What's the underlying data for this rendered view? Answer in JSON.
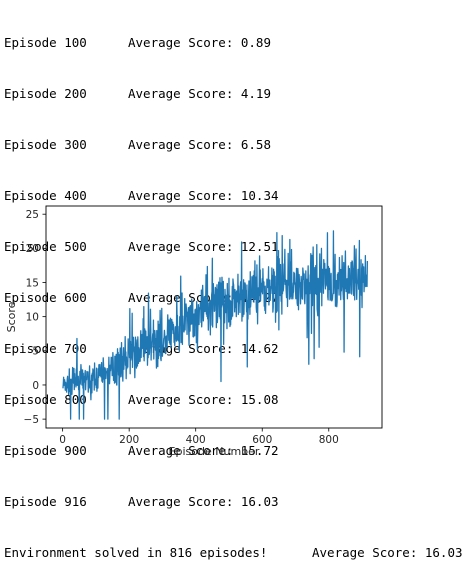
{
  "log": {
    "episodes": [
      {
        "episode": "Episode 100",
        "score": "Average Score: 0.89"
      },
      {
        "episode": "Episode 200",
        "score": "Average Score: 4.19"
      },
      {
        "episode": "Episode 300",
        "score": "Average Score: 6.58"
      },
      {
        "episode": "Episode 400",
        "score": "Average Score: 10.34"
      },
      {
        "episode": "Episode 500",
        "score": "Average Score: 12.51"
      },
      {
        "episode": "Episode 600",
        "score": "Average Score: 14.27"
      },
      {
        "episode": "Episode 700",
        "score": "Average Score: 14.62"
      },
      {
        "episode": "Episode 800",
        "score": "Average Score: 15.08"
      },
      {
        "episode": "Episode 900",
        "score": "Average Score: 15.72"
      },
      {
        "episode": "Episode 916",
        "score": "Average Score: 16.03"
      }
    ],
    "solved": "Environment solved in 816 episodes!",
    "solved_score": "Average Score: 16.03"
  },
  "chart_data": {
    "type": "line",
    "title": "",
    "xlabel": "Episode Number",
    "ylabel": "Score",
    "xlim": [
      -50,
      960
    ],
    "ylim": [
      -6.3,
      26.2
    ],
    "x_ticks": [
      0,
      200,
      400,
      600,
      800
    ],
    "y_ticks": [
      -5,
      0,
      5,
      10,
      15,
      20,
      25
    ],
    "line_color": "#1f77b4",
    "grid": false,
    "trend_points": [
      {
        "episode": 0,
        "score": 0.0
      },
      {
        "episode": 100,
        "score": 0.89
      },
      {
        "episode": 200,
        "score": 4.19
      },
      {
        "episode": 300,
        "score": 6.58
      },
      {
        "episode": 400,
        "score": 10.34
      },
      {
        "episode": 500,
        "score": 12.51
      },
      {
        "episode": 600,
        "score": 14.27
      },
      {
        "episode": 700,
        "score": 14.62
      },
      {
        "episode": 800,
        "score": 15.08
      },
      {
        "episode": 900,
        "score": 15.72
      },
      {
        "episode": 916,
        "score": 16.03
      }
    ],
    "n_episodes": 916,
    "score_min": -5,
    "score_max": 25
  }
}
